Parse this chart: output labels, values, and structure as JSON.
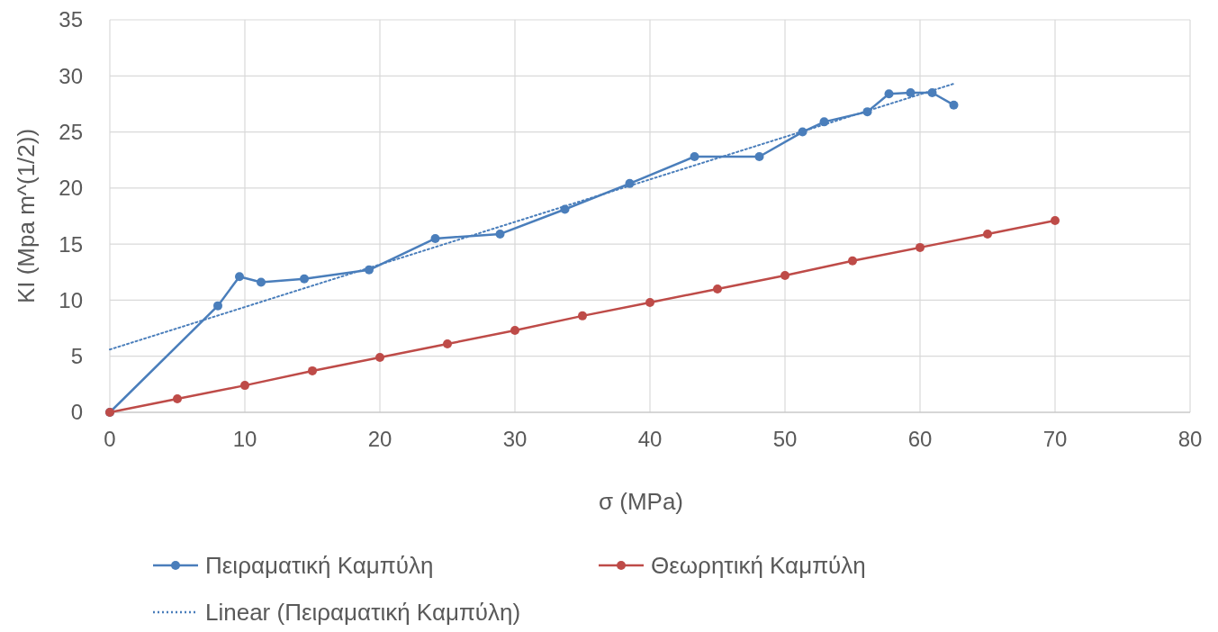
{
  "chart_data": {
    "type": "line",
    "xlabel": "σ (MPa)",
    "ylabel": "KI (Mpa m^(1/2))",
    "xlim": [
      0,
      80
    ],
    "xticks": [
      0,
      10,
      20,
      30,
      40,
      50,
      60,
      70,
      80
    ],
    "ylim": [
      0,
      35
    ],
    "yticks": [
      0,
      5,
      10,
      15,
      20,
      25,
      30,
      35
    ],
    "grid": true,
    "legend": "bottom",
    "series": [
      {
        "name": "Πειραματική Καμπύλη",
        "color": "#4a7ebb",
        "marker": "circle",
        "line_style": "solid",
        "x": [
          0,
          8,
          9.6,
          11.2,
          14.4,
          19.2,
          24.1,
          28.9,
          33.7,
          38.5,
          43.3,
          48.1,
          51.3,
          52.9,
          56.1,
          57.7,
          59.3,
          60.9,
          62.5
        ],
        "values": [
          0,
          9.5,
          12.1,
          11.6,
          11.9,
          12.7,
          15.5,
          15.9,
          18.1,
          20.4,
          22.8,
          22.8,
          25,
          25.9,
          26.8,
          28.4,
          28.5,
          28.5,
          27.4
        ]
      },
      {
        "name": "Θεωρητική Καμπύλη",
        "color": "#be4b48",
        "marker": "circle",
        "line_style": "solid",
        "x": [
          0,
          5,
          10,
          15,
          20,
          25,
          30,
          35,
          40,
          45,
          50,
          55,
          60,
          65,
          70
        ],
        "values": [
          0,
          1.2,
          2.4,
          3.7,
          4.9,
          6.1,
          7.3,
          8.6,
          9.8,
          11,
          12.2,
          13.5,
          14.7,
          15.9,
          17.1
        ]
      },
      {
        "name": "Linear (Πειραματική Καμπύλη)",
        "color": "#4a7ebb",
        "marker": "none",
        "line_style": "dotted",
        "x": [
          0,
          62.5
        ],
        "values": [
          5.6,
          29.3
        ]
      }
    ]
  }
}
